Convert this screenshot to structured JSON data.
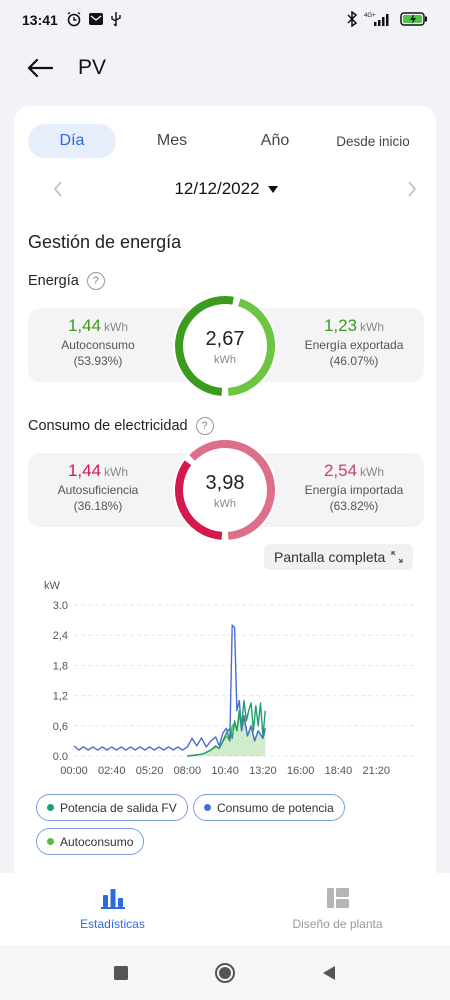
{
  "status": {
    "time": "13:41",
    "network": "4G+"
  },
  "header": {
    "title": "PV"
  },
  "tabs": [
    {
      "label": "Día",
      "active": true
    },
    {
      "label": "Mes"
    },
    {
      "label": "Año"
    },
    {
      "label": "Desde inicio"
    }
  ],
  "date": {
    "value": "12/12/2022"
  },
  "energy_management": {
    "title": "Gestión de energía",
    "energy": {
      "label": "Energía",
      "total": "2,67",
      "total_unit": "kWh",
      "left": {
        "value": "1,44",
        "unit": "kWh",
        "label": "Autoconsumo",
        "pct": "(53.93%)"
      },
      "right": {
        "value": "1,23",
        "unit": "kWh",
        "label": "Energía exportada",
        "pct": "(46.07%)"
      },
      "colors": {
        "primary": "#3a9b1e",
        "secondary": "#6cc644"
      }
    },
    "consumption": {
      "label": "Consumo de electricidad",
      "total": "3,98",
      "total_unit": "kWh",
      "left": {
        "value": "1,44",
        "unit": "kWh",
        "label": "Autosuficiencia",
        "pct": "(36.18%)"
      },
      "right": {
        "value": "2,54",
        "unit": "kWh",
        "label": "Energía importada",
        "pct": "(63.82%)"
      },
      "colors": {
        "primary": "#d4194f",
        "secondary": "#dd7088"
      }
    }
  },
  "fullscreen": {
    "label": "Pantalla completa"
  },
  "chart_data": {
    "type": "line",
    "ylabel": "kW",
    "ylim": [
      0,
      3.0
    ],
    "yticks": [
      "0.0",
      "0,6",
      "1,2",
      "1,8",
      "2,4",
      "3.0"
    ],
    "ytick_values": [
      0,
      0.6,
      1.2,
      1.8,
      2.4,
      3.0
    ],
    "xticks": [
      "00:00",
      "02:40",
      "05:20",
      "08:00",
      "10:40",
      "13:20",
      "16:00",
      "18:40",
      "21:20"
    ],
    "x_range": [
      "00:00",
      "24:00"
    ],
    "grid": true,
    "series": [
      {
        "name": "Potencia de salida FV",
        "color": "#1f9e6e",
        "fill": false,
        "points": [
          [
            "08:00",
            0.0
          ],
          [
            "08:40",
            0.02
          ],
          [
            "09:10",
            0.05
          ],
          [
            "09:40",
            0.12
          ],
          [
            "10:00",
            0.2
          ],
          [
            "10:15",
            0.15
          ],
          [
            "10:30",
            0.3
          ],
          [
            "10:45",
            0.45
          ],
          [
            "11:00",
            0.55
          ],
          [
            "11:10",
            0.35
          ],
          [
            "11:20",
            0.7
          ],
          [
            "11:30",
            0.5
          ],
          [
            "11:40",
            0.9
          ],
          [
            "11:50",
            0.6
          ],
          [
            "12:00",
            1.1
          ],
          [
            "12:10",
            0.7
          ],
          [
            "12:20",
            0.9
          ],
          [
            "12:30",
            1.05
          ],
          [
            "12:40",
            0.5
          ],
          [
            "12:50",
            1.0
          ],
          [
            "13:00",
            0.6
          ],
          [
            "13:10",
            1.05
          ],
          [
            "13:20",
            0.4
          ],
          [
            "13:30",
            0.9
          ]
        ]
      },
      {
        "name": "Consumo de potencia",
        "color": "#4a6fd0",
        "fill": false,
        "points": [
          [
            "00:00",
            0.2
          ],
          [
            "00:20",
            0.12
          ],
          [
            "00:40",
            0.18
          ],
          [
            "01:00",
            0.12
          ],
          [
            "01:20",
            0.18
          ],
          [
            "01:40",
            0.12
          ],
          [
            "02:00",
            0.18
          ],
          [
            "02:20",
            0.12
          ],
          [
            "02:40",
            0.18
          ],
          [
            "03:00",
            0.12
          ],
          [
            "03:20",
            0.18
          ],
          [
            "03:40",
            0.12
          ],
          [
            "04:00",
            0.18
          ],
          [
            "04:20",
            0.12
          ],
          [
            "04:40",
            0.18
          ],
          [
            "05:00",
            0.12
          ],
          [
            "05:20",
            0.18
          ],
          [
            "05:40",
            0.12
          ],
          [
            "06:00",
            0.18
          ],
          [
            "06:20",
            0.12
          ],
          [
            "06:40",
            0.18
          ],
          [
            "07:00",
            0.12
          ],
          [
            "07:20",
            0.18
          ],
          [
            "07:40",
            0.12
          ],
          [
            "08:00",
            0.18
          ],
          [
            "08:20",
            0.35
          ],
          [
            "08:40",
            0.2
          ],
          [
            "09:00",
            0.36
          ],
          [
            "09:20",
            0.18
          ],
          [
            "09:40",
            0.3
          ],
          [
            "10:00",
            0.38
          ],
          [
            "10:15",
            0.2
          ],
          [
            "10:30",
            0.45
          ],
          [
            "10:45",
            0.55
          ],
          [
            "11:00",
            0.3
          ],
          [
            "11:10",
            2.6
          ],
          [
            "11:20",
            2.55
          ],
          [
            "11:30",
            0.9
          ],
          [
            "11:40",
            1.1
          ],
          [
            "11:50",
            0.5
          ],
          [
            "12:00",
            0.8
          ],
          [
            "12:15",
            0.4
          ],
          [
            "12:30",
            0.6
          ],
          [
            "12:45",
            0.3
          ],
          [
            "13:00",
            0.5
          ],
          [
            "13:20",
            0.35
          ],
          [
            "13:30",
            0.55
          ]
        ]
      },
      {
        "name": "Autoconsumo",
        "color": "#55bb44",
        "fill": true,
        "points": [
          [
            "08:00",
            0.0
          ],
          [
            "08:40",
            0.02
          ],
          [
            "09:10",
            0.05
          ],
          [
            "09:40",
            0.12
          ],
          [
            "10:00",
            0.18
          ],
          [
            "10:15",
            0.15
          ],
          [
            "10:30",
            0.28
          ],
          [
            "10:45",
            0.4
          ],
          [
            "11:00",
            0.3
          ],
          [
            "11:10",
            0.6
          ],
          [
            "11:20",
            0.65
          ],
          [
            "11:30",
            0.5
          ],
          [
            "11:40",
            0.85
          ],
          [
            "11:50",
            0.5
          ],
          [
            "12:00",
            0.75
          ],
          [
            "12:15",
            0.4
          ],
          [
            "12:30",
            0.6
          ],
          [
            "12:45",
            0.3
          ],
          [
            "13:00",
            0.5
          ],
          [
            "13:20",
            0.35
          ],
          [
            "13:30",
            0.55
          ]
        ]
      }
    ]
  },
  "bottom_nav": [
    {
      "label": "Estadísticas",
      "active": true
    },
    {
      "label": "Diseño de planta"
    }
  ]
}
